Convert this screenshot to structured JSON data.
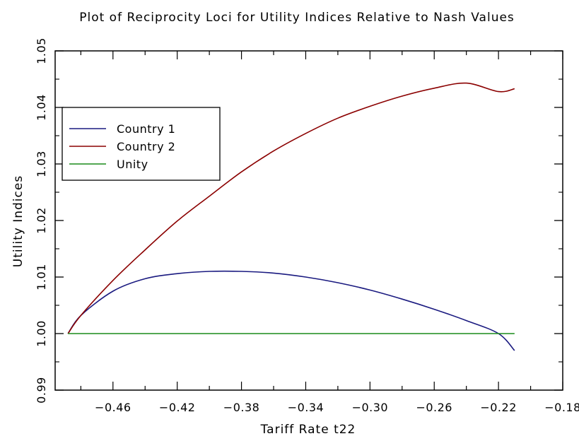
{
  "chart_data": {
    "type": "line",
    "title": "Plot of Reciprocity Loci for Utility Indices Relative to Nash Values",
    "xlabel": "Tariff Rate t22",
    "ylabel": "Utility Indices",
    "xlim": [
      -0.496,
      -0.18
    ],
    "ylim": [
      0.99,
      1.05
    ],
    "xticks": [
      -0.46,
      -0.42,
      -0.38,
      -0.34,
      -0.3,
      -0.26,
      -0.22,
      -0.18
    ],
    "xtick_labels": [
      "−0.46",
      "−0.42",
      "−0.38",
      "−0.34",
      "−0.30",
      "−0.26",
      "−0.22",
      "−0.18"
    ],
    "yticks": [
      0.99,
      1.0,
      1.01,
      1.02,
      1.03,
      1.04,
      1.05
    ],
    "ytick_labels": [
      "0.99",
      "1.00",
      "1.01",
      "1.02",
      "1.03",
      "1.04",
      "1.05"
    ],
    "grid": false,
    "legend_position": "upper-left",
    "series": [
      {
        "name": "Country 1",
        "color": "#1a1a80",
        "x": [
          -0.488,
          -0.48,
          -0.46,
          -0.44,
          -0.42,
          -0.4,
          -0.38,
          -0.36,
          -0.34,
          -0.32,
          -0.3,
          -0.28,
          -0.26,
          -0.24,
          -0.22,
          -0.21
        ],
        "y": [
          1.0,
          1.0032,
          1.0075,
          1.0097,
          1.0106,
          1.011,
          1.011,
          1.0107,
          1.01,
          1.009,
          1.0077,
          1.0061,
          1.0043,
          1.0023,
          1.0,
          0.997
        ]
      },
      {
        "name": "Country 2",
        "color": "#8b0000",
        "x": [
          -0.488,
          -0.48,
          -0.46,
          -0.44,
          -0.42,
          -0.4,
          -0.38,
          -0.36,
          -0.34,
          -0.32,
          -0.3,
          -0.28,
          -0.26,
          -0.24,
          -0.22,
          -0.21
        ],
        "y": [
          1.0,
          1.0032,
          1.0094,
          1.0148,
          1.0199,
          1.0243,
          1.0286,
          1.0323,
          1.0354,
          1.0381,
          1.0402,
          1.042,
          1.0434,
          1.0443,
          1.0428,
          1.0433
        ]
      },
      {
        "name": "Unity",
        "color": "#1a8c1a",
        "x": [
          -0.488,
          -0.21
        ],
        "y": [
          1.0,
          1.0
        ]
      }
    ]
  }
}
